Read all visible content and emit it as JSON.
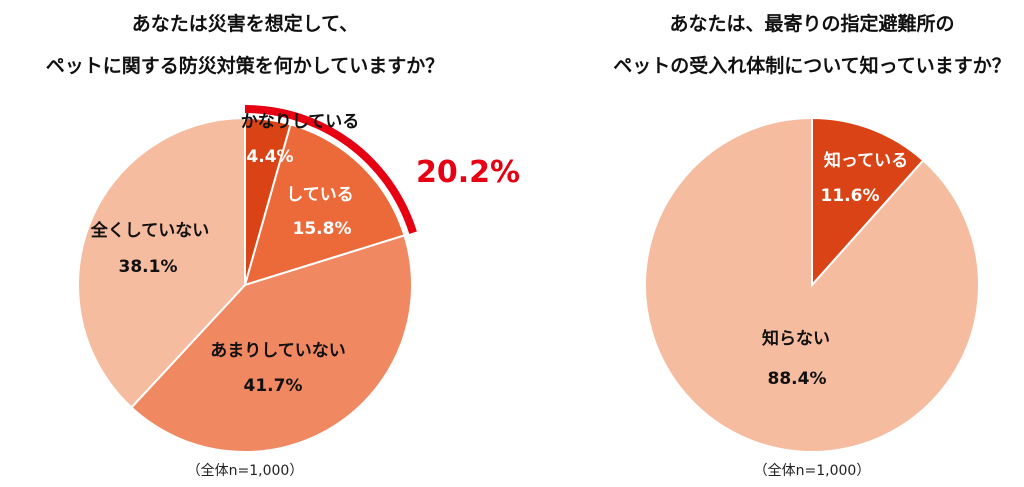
{
  "chart_data": [
    {
      "type": "pie",
      "title": [
        "あなたは災害を想定して、",
        "ペットに関する防災対策を何かしていますか？"
      ],
      "categories": [
        "かなりしている",
        "している",
        "あまりしていない",
        "全くしていない"
      ],
      "values": [
        4.4,
        15.8,
        41.7,
        38.1
      ],
      "value_labels": [
        "4.4%",
        "15.8%",
        "41.7%",
        "38.1%"
      ],
      "colors": [
        "#D94315",
        "#EC6A3A",
        "#F08862",
        "#F6BCA0"
      ],
      "label_colors": [
        "#fff",
        "#fff",
        "#111",
        "#111"
      ],
      "highlight": {
        "label": "20.2%",
        "value": 20.2,
        "color": "#E60012"
      },
      "note": "（全体n=1,000）",
      "start": "top",
      "direction": "clockwise"
    },
    {
      "type": "pie",
      "title": [
        "あなたは、最寄りの指定避難所の",
        "ペットの受入れ体制について知っていますか？"
      ],
      "categories": [
        "知っている",
        "知らない"
      ],
      "values": [
        11.6,
        88.4
      ],
      "value_labels": [
        "11.6%",
        "88.4%"
      ],
      "colors": [
        "#D94315",
        "#F6BCA0"
      ],
      "label_colors": [
        "#fff",
        "#111"
      ],
      "note": "（全体n=1,000）",
      "start": "top",
      "direction": "clockwise"
    }
  ]
}
